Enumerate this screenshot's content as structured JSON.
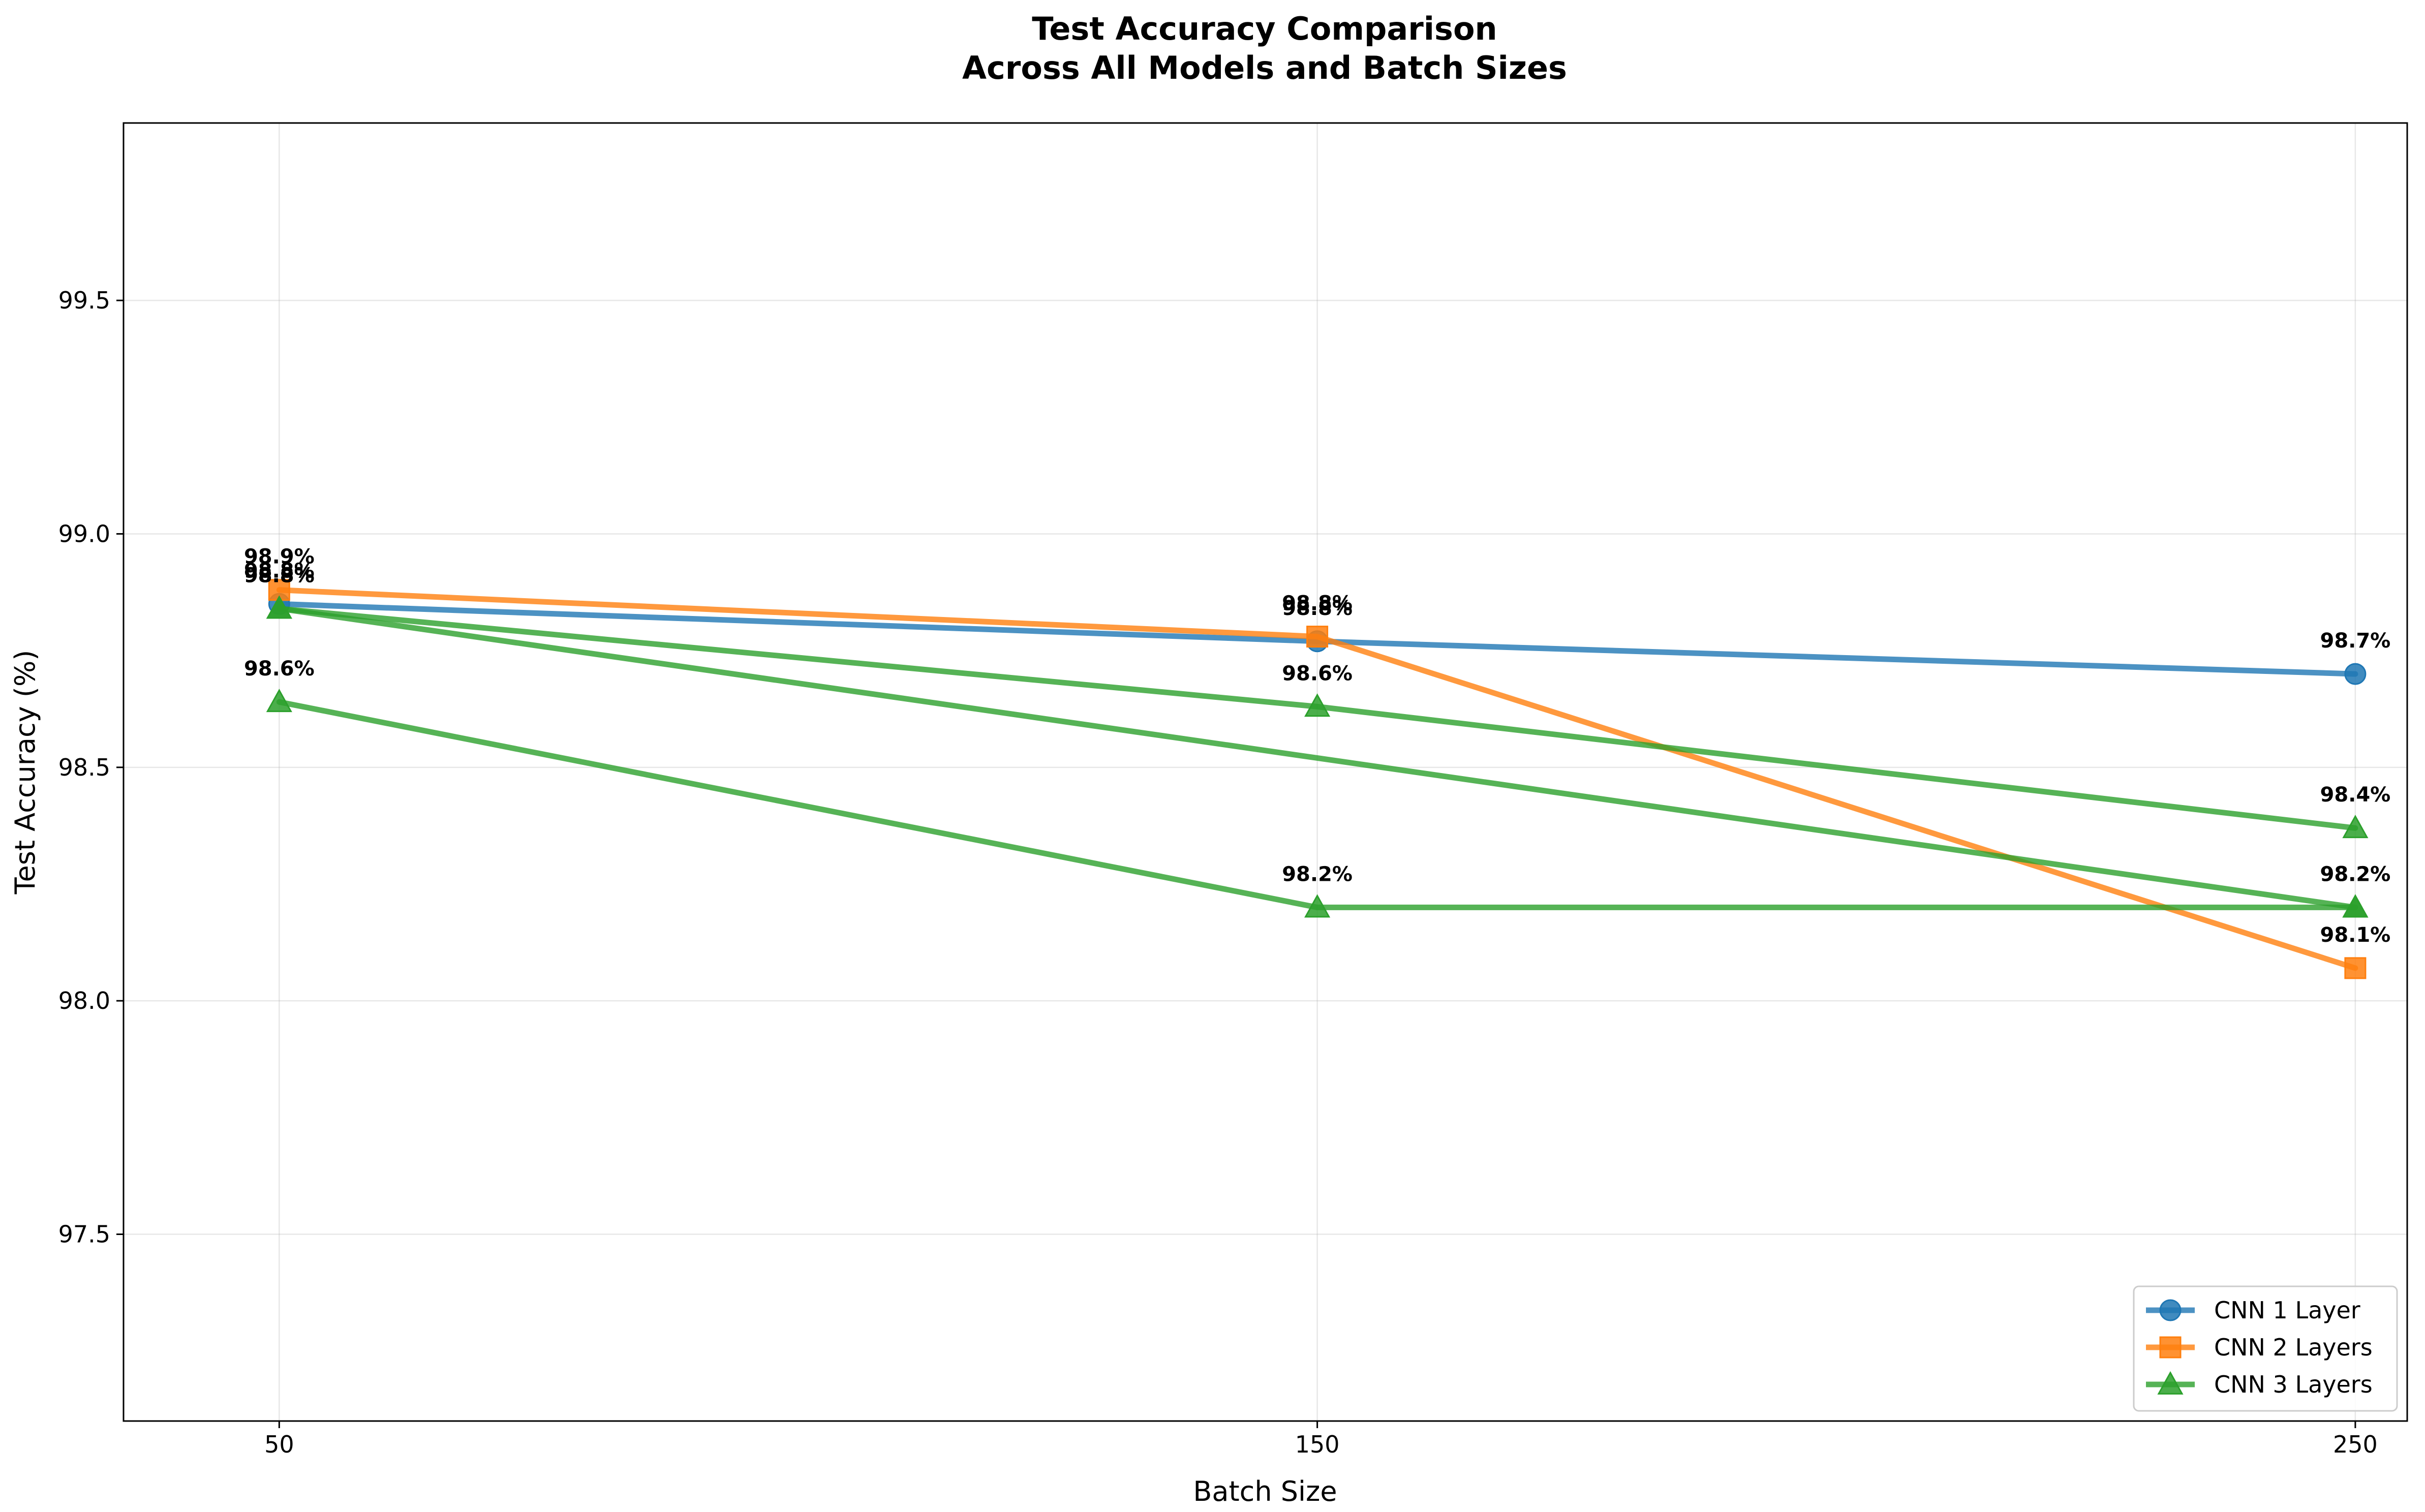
{
  "chart_data": {
    "type": "line",
    "title_lines": [
      "Test Accuracy Comparison",
      "Across All Models and Batch Sizes"
    ],
    "xlabel": "Batch Size",
    "ylabel": "Test Accuracy (%)",
    "x": [
      50,
      150,
      250
    ],
    "x_tick_labels": [
      "50",
      "150",
      "250"
    ],
    "ylim": [
      97.1,
      99.88
    ],
    "y_ticks": [
      97.5,
      98.0,
      98.5,
      99.0,
      99.5
    ],
    "y_tick_labels": [
      "97.5",
      "98.0",
      "98.5",
      "99.0",
      "99.5"
    ],
    "grid": true,
    "legend_position": "lower-right",
    "series": [
      {
        "name": "CNN 1 Layer",
        "color": "#1f77b4",
        "marker": "circle",
        "values": [
          98.85,
          98.77,
          98.7
        ],
        "labels": [
          "98.8%",
          "98.8%",
          "98.7%"
        ]
      },
      {
        "name": "CNN 2 Layers",
        "color": "#ff7f0e",
        "marker": "square",
        "values": [
          98.88,
          98.78,
          98.07
        ],
        "labels": [
          "98.9%",
          "98.8%",
          "98.1%"
        ]
      },
      {
        "name": "CNN 3 Layers",
        "color": "#2ca02c",
        "marker": "triangle",
        "values": [
          98.84,
          98.63,
          98.37
        ],
        "labels": [
          "98.8%",
          "98.6%",
          "98.4%"
        ]
      },
      {
        "name": "",
        "color": "#2ca02c",
        "marker": "triangle",
        "values": [
          98.84,
          98.52,
          98.2
        ],
        "labels": [
          "98.8%",
          "",
          "98.2%"
        ]
      },
      {
        "name": "",
        "color": "#2ca02c",
        "marker": "triangle",
        "values": [
          98.64,
          98.2,
          98.2
        ],
        "labels": [
          "98.6%",
          "98.2%",
          "98.2%"
        ]
      }
    ]
  }
}
